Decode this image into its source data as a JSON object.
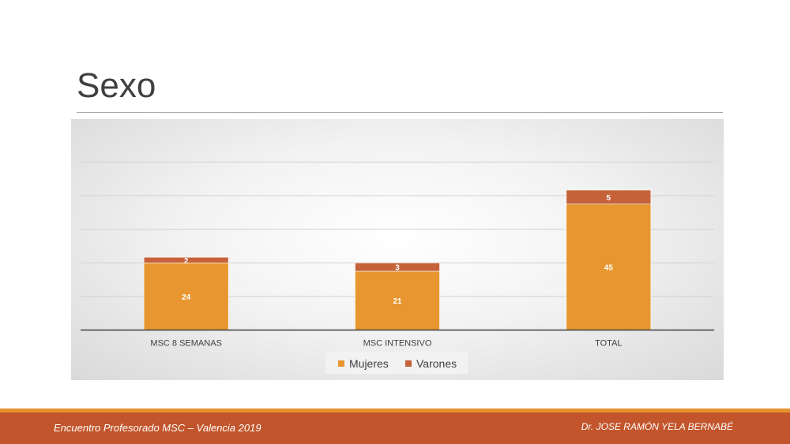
{
  "slide": {
    "title": "Sexo"
  },
  "footer": {
    "left": "Encuentro Profesorado MSC – Valencia 2019",
    "right": "Dr. JOSE RAMÓN YELA BERNABÉ"
  },
  "colors": {
    "mujeres": "#e8962f",
    "varones": "#c5623a",
    "footer": "#c2552b",
    "footer_accent": "#e8912f"
  },
  "chart_data": {
    "type": "bar",
    "stacked": true,
    "categories": [
      "MSC 8 SEMANAS",
      "MSC INTENSIVO",
      "TOTAL"
    ],
    "series": [
      {
        "name": "Mujeres",
        "values": [
          24,
          21,
          45
        ]
      },
      {
        "name": "Varones",
        "values": [
          2,
          3,
          5
        ]
      }
    ],
    "ylim": [
      0,
      60
    ],
    "grid": true,
    "legend": "bottom"
  }
}
